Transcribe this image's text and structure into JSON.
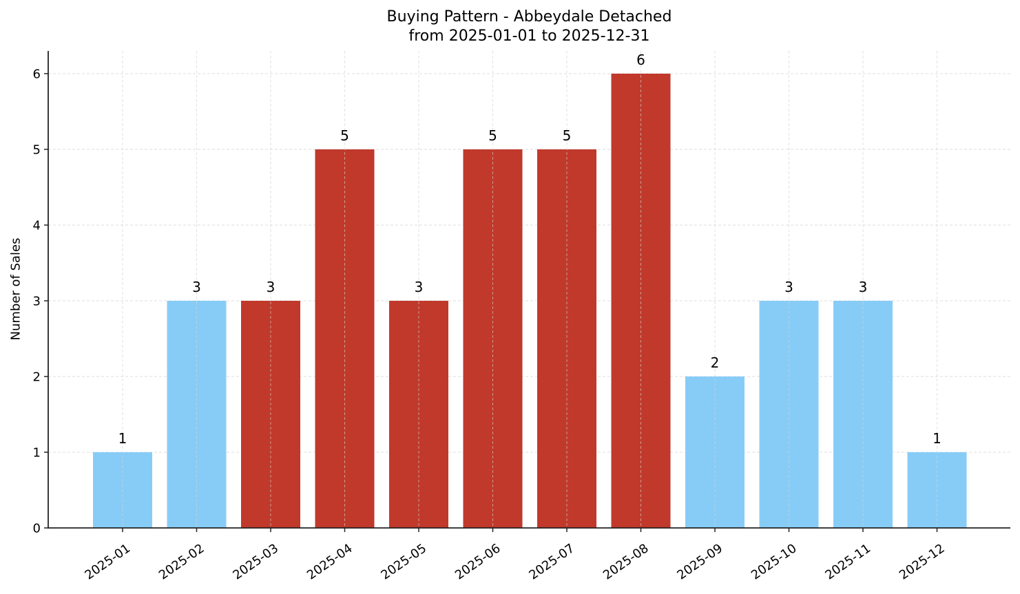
{
  "chart_data": {
    "type": "bar",
    "title": "Buying Pattern - Abbeydale Detached",
    "subtitle": "from 2025-01-01 to 2025-12-31",
    "xlabel": "",
    "ylabel": "Number of Sales",
    "categories": [
      "2025-01",
      "2025-02",
      "2025-03",
      "2025-04",
      "2025-05",
      "2025-06",
      "2025-07",
      "2025-08",
      "2025-09",
      "2025-10",
      "2025-11",
      "2025-12"
    ],
    "values": [
      1,
      3,
      3,
      5,
      3,
      5,
      5,
      6,
      2,
      3,
      3,
      1
    ],
    "bar_colors": [
      "#87ccf7",
      "#87ccf7",
      "#c0392b",
      "#c0392b",
      "#c0392b",
      "#c0392b",
      "#c0392b",
      "#c0392b",
      "#87ccf7",
      "#87ccf7",
      "#87ccf7",
      "#87ccf7"
    ],
    "data_labels": [
      "1",
      "3",
      "3",
      "5",
      "3",
      "5",
      "5",
      "6",
      "2",
      "3",
      "3",
      "1"
    ],
    "yticks": [
      0,
      1,
      2,
      3,
      4,
      5,
      6
    ],
    "ylim": [
      0,
      6.3
    ],
    "grid": true,
    "legend": null,
    "colors": {
      "high": "#c0392b",
      "low": "#87ccf7",
      "grid": "#d3d3d3",
      "axis": "#222222"
    }
  }
}
